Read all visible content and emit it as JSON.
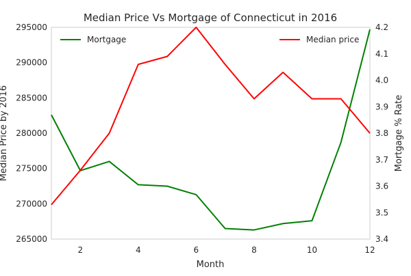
{
  "chart_data": {
    "type": "line",
    "title": "Median Price Vs Mortgage of Connecticut in 2016",
    "xlabel": "Month",
    "ylabel_left": "Median Price by 2016",
    "ylabel_right": "Mortgage % Rate",
    "x": [
      1,
      2,
      3,
      4,
      5,
      6,
      7,
      8,
      9,
      10,
      11,
      12
    ],
    "xlim": [
      1,
      12
    ],
    "xticks": [
      2,
      4,
      6,
      8,
      10,
      12
    ],
    "y_left_lim": [
      265000,
      295000
    ],
    "y_left_ticks": [
      265000,
      270000,
      275000,
      280000,
      285000,
      290000,
      295000
    ],
    "y_right_lim": [
      3.4,
      4.2
    ],
    "y_right_ticks": [
      "3.4",
      "3.5",
      "3.6",
      "3.7",
      "3.8",
      "3.9",
      "4.0",
      "4.1",
      "4.2"
    ],
    "grid": false,
    "series": [
      {
        "name": "Mortgage",
        "axis": "left",
        "color": "#008000",
        "legend_position": "top-left",
        "values": [
          282600,
          274700,
          276000,
          272700,
          272500,
          271300,
          266500,
          266300,
          267200,
          267600,
          278700,
          294700
        ]
      },
      {
        "name": "Median price",
        "axis": "right",
        "color": "#ff0000",
        "legend_position": "top-right",
        "values": [
          3.53,
          3.66,
          3.8,
          4.06,
          4.09,
          4.2,
          4.06,
          3.93,
          4.03,
          3.93,
          3.93,
          3.8
        ]
      }
    ]
  }
}
